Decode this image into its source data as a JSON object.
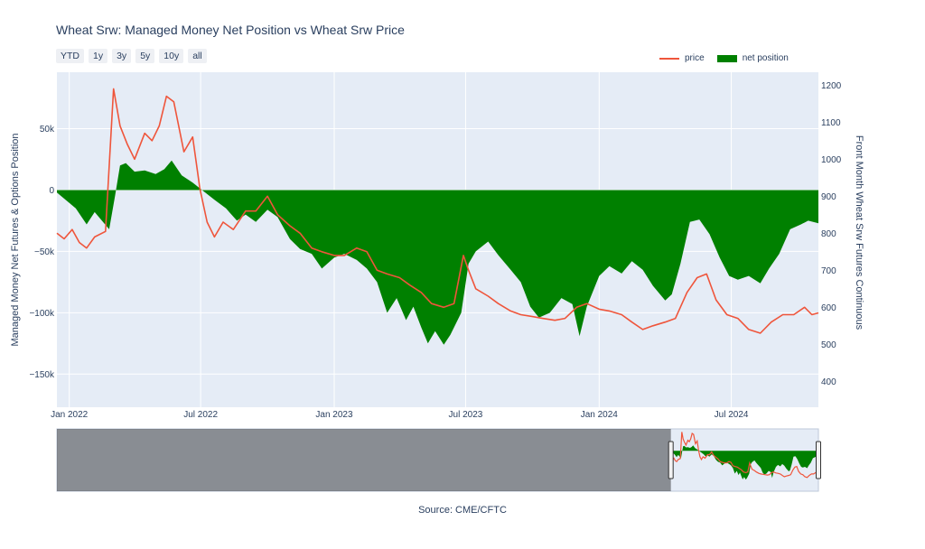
{
  "title": "Wheat Srw: Managed Money Net Position vs Wheat Srw Price",
  "source": "Source: CME/CFTC",
  "range_buttons": [
    "YTD",
    "1y",
    "3y",
    "5y",
    "10y",
    "all"
  ],
  "legend": {
    "price": "price",
    "net": "net position"
  },
  "colors": {
    "price": "#ef553b",
    "net": "#008000",
    "plot_bg": "#e5ecf6",
    "grid": "#ffffff",
    "text": "#2a3f5f"
  },
  "chart_data": {
    "type": "line",
    "title": "Wheat Srw: Managed Money Net Position vs Wheat Srw Price",
    "y_left": {
      "label": "Managed Money Net Futures & Options Position",
      "range": [
        -177000,
        96000
      ],
      "ticks": [
        50000,
        0,
        -50000,
        -100000,
        -150000
      ],
      "tick_labels": [
        "50k",
        "0",
        "−50k",
        "−100k",
        "−150k"
      ]
    },
    "y_right": {
      "label": "Front Month Wheat Srw Futures Continuous",
      "range": [
        330,
        1235
      ],
      "ticks": [
        1200,
        1100,
        1000,
        900,
        800,
        700,
        600,
        500,
        400
      ]
    },
    "x_range": [
      "2021-12-15",
      "2024-10-29"
    ],
    "x_ticks": [
      {
        "date": "2022-01-01",
        "label": "Jan 2022"
      },
      {
        "date": "2022-07-01",
        "label": "Jul 2022"
      },
      {
        "date": "2023-01-01",
        "label": "Jan 2023"
      },
      {
        "date": "2023-07-01",
        "label": "Jul 2023"
      },
      {
        "date": "2024-01-01",
        "label": "Jan 2024"
      },
      {
        "date": "2024-07-01",
        "label": "Jul 2024"
      }
    ],
    "series": [
      {
        "name": "net position",
        "type": "area",
        "points": [
          [
            "2021-12-15",
            -2000
          ],
          [
            "2022-01-10",
            -15000
          ],
          [
            "2022-01-25",
            -28000
          ],
          [
            "2022-02-05",
            -18000
          ],
          [
            "2022-02-15",
            -25000
          ],
          [
            "2022-02-25",
            -32000
          ],
          [
            "2022-03-05",
            -5000
          ],
          [
            "2022-03-12",
            20000
          ],
          [
            "2022-03-20",
            22000
          ],
          [
            "2022-04-01",
            15000
          ],
          [
            "2022-04-15",
            16000
          ],
          [
            "2022-04-30",
            13000
          ],
          [
            "2022-05-12",
            17000
          ],
          [
            "2022-05-22",
            24000
          ],
          [
            "2022-06-05",
            12000
          ],
          [
            "2022-06-20",
            6000
          ],
          [
            "2022-07-05",
            -1000
          ],
          [
            "2022-07-20",
            -8000
          ],
          [
            "2022-08-05",
            -15000
          ],
          [
            "2022-08-20",
            -25000
          ],
          [
            "2022-09-01",
            -20000
          ],
          [
            "2022-09-15",
            -26000
          ],
          [
            "2022-10-01",
            -16000
          ],
          [
            "2022-10-15",
            -22000
          ],
          [
            "2022-11-01",
            -40000
          ],
          [
            "2022-11-15",
            -48000
          ],
          [
            "2022-12-01",
            -52000
          ],
          [
            "2022-12-15",
            -64000
          ],
          [
            "2023-01-01",
            -55000
          ],
          [
            "2023-01-15",
            -52000
          ],
          [
            "2023-02-01",
            -57000
          ],
          [
            "2023-02-15",
            -64000
          ],
          [
            "2023-03-01",
            -75000
          ],
          [
            "2023-03-15",
            -100000
          ],
          [
            "2023-03-28",
            -88000
          ],
          [
            "2023-04-10",
            -106000
          ],
          [
            "2023-04-20",
            -95000
          ],
          [
            "2023-05-01",
            -112000
          ],
          [
            "2023-05-10",
            -125000
          ],
          [
            "2023-05-20",
            -115000
          ],
          [
            "2023-06-01",
            -126000
          ],
          [
            "2023-06-10",
            -118000
          ],
          [
            "2023-06-25",
            -100000
          ],
          [
            "2023-07-05",
            -60000
          ],
          [
            "2023-07-15",
            -50000
          ],
          [
            "2023-08-01",
            -42000
          ],
          [
            "2023-08-15",
            -53000
          ],
          [
            "2023-09-01",
            -65000
          ],
          [
            "2023-09-15",
            -75000
          ],
          [
            "2023-09-28",
            -95000
          ],
          [
            "2023-10-10",
            -104000
          ],
          [
            "2023-10-25",
            -100000
          ],
          [
            "2023-11-10",
            -88000
          ],
          [
            "2023-11-25",
            -93000
          ],
          [
            "2023-12-05",
            -119000
          ],
          [
            "2023-12-15",
            -95000
          ],
          [
            "2024-01-01",
            -70000
          ],
          [
            "2024-01-15",
            -62000
          ],
          [
            "2024-02-01",
            -68000
          ],
          [
            "2024-02-15",
            -58000
          ],
          [
            "2024-03-01",
            -65000
          ],
          [
            "2024-03-15",
            -78000
          ],
          [
            "2024-04-01",
            -90000
          ],
          [
            "2024-04-10",
            -85000
          ],
          [
            "2024-04-22",
            -60000
          ],
          [
            "2024-05-05",
            -26000
          ],
          [
            "2024-05-18",
            -24000
          ],
          [
            "2024-06-01",
            -36000
          ],
          [
            "2024-06-15",
            -55000
          ],
          [
            "2024-06-28",
            -70000
          ],
          [
            "2024-07-10",
            -73000
          ],
          [
            "2024-07-25",
            -70000
          ],
          [
            "2024-08-10",
            -76000
          ],
          [
            "2024-08-22",
            -64000
          ],
          [
            "2024-09-05",
            -52000
          ],
          [
            "2024-09-20",
            -32000
          ],
          [
            "2024-10-05",
            -28000
          ],
          [
            "2024-10-15",
            -25000
          ],
          [
            "2024-10-29",
            -27000
          ]
        ]
      },
      {
        "name": "price",
        "type": "line",
        "points": [
          [
            "2021-12-15",
            800
          ],
          [
            "2021-12-25",
            785
          ],
          [
            "2022-01-05",
            810
          ],
          [
            "2022-01-15",
            775
          ],
          [
            "2022-01-25",
            760
          ],
          [
            "2022-02-05",
            790
          ],
          [
            "2022-02-20",
            805
          ],
          [
            "2022-03-03",
            1190
          ],
          [
            "2022-03-12",
            1090
          ],
          [
            "2022-03-22",
            1040
          ],
          [
            "2022-04-01",
            1000
          ],
          [
            "2022-04-15",
            1070
          ],
          [
            "2022-04-25",
            1050
          ],
          [
            "2022-05-05",
            1090
          ],
          [
            "2022-05-15",
            1170
          ],
          [
            "2022-05-25",
            1155
          ],
          [
            "2022-06-08",
            1020
          ],
          [
            "2022-06-20",
            1060
          ],
          [
            "2022-06-30",
            920
          ],
          [
            "2022-07-10",
            830
          ],
          [
            "2022-07-20",
            790
          ],
          [
            "2022-08-01",
            830
          ],
          [
            "2022-08-15",
            810
          ],
          [
            "2022-09-01",
            860
          ],
          [
            "2022-09-15",
            860
          ],
          [
            "2022-10-01",
            900
          ],
          [
            "2022-10-15",
            850
          ],
          [
            "2022-11-01",
            820
          ],
          [
            "2022-11-15",
            800
          ],
          [
            "2022-12-01",
            760
          ],
          [
            "2022-12-15",
            750
          ],
          [
            "2023-01-01",
            740
          ],
          [
            "2023-01-15",
            740
          ],
          [
            "2023-02-01",
            760
          ],
          [
            "2023-02-15",
            750
          ],
          [
            "2023-03-01",
            700
          ],
          [
            "2023-03-15",
            690
          ],
          [
            "2023-04-01",
            680
          ],
          [
            "2023-04-15",
            660
          ],
          [
            "2023-05-01",
            640
          ],
          [
            "2023-05-15",
            610
          ],
          [
            "2023-06-01",
            600
          ],
          [
            "2023-06-15",
            610
          ],
          [
            "2023-06-28",
            740
          ],
          [
            "2023-07-05",
            700
          ],
          [
            "2023-07-15",
            650
          ],
          [
            "2023-08-01",
            630
          ],
          [
            "2023-08-15",
            610
          ],
          [
            "2023-09-01",
            590
          ],
          [
            "2023-09-15",
            580
          ],
          [
            "2023-10-01",
            575
          ],
          [
            "2023-10-15",
            570
          ],
          [
            "2023-11-01",
            565
          ],
          [
            "2023-11-15",
            570
          ],
          [
            "2023-12-01",
            600
          ],
          [
            "2023-12-15",
            610
          ],
          [
            "2024-01-01",
            595
          ],
          [
            "2024-01-15",
            590
          ],
          [
            "2024-02-01",
            580
          ],
          [
            "2024-02-15",
            560
          ],
          [
            "2024-03-01",
            540
          ],
          [
            "2024-03-15",
            550
          ],
          [
            "2024-04-01",
            560
          ],
          [
            "2024-04-15",
            570
          ],
          [
            "2024-05-01",
            640
          ],
          [
            "2024-05-15",
            680
          ],
          [
            "2024-05-28",
            690
          ],
          [
            "2024-06-10",
            620
          ],
          [
            "2024-06-25",
            580
          ],
          [
            "2024-07-10",
            570
          ],
          [
            "2024-07-25",
            540
          ],
          [
            "2024-08-10",
            530
          ],
          [
            "2024-08-25",
            560
          ],
          [
            "2024-09-10",
            580
          ],
          [
            "2024-09-25",
            580
          ],
          [
            "2024-10-10",
            600
          ],
          [
            "2024-10-20",
            580
          ],
          [
            "2024-10-29",
            585
          ]
        ]
      }
    ],
    "range_slider": {
      "selected_range": [
        "2021-12-15",
        "2024-10-29"
      ],
      "full_range": [
        "2010-01-01",
        "2024-10-29"
      ]
    }
  }
}
